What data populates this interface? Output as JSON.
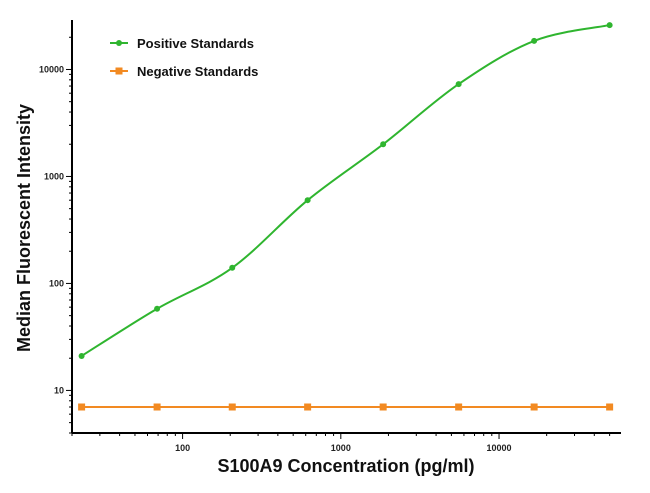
{
  "chart_data": {
    "type": "line",
    "title": "",
    "xlabel": "S100A9 Concentration (pg/ml)",
    "ylabel": "Median Fluorescent Intensity",
    "x_scale": "log",
    "y_scale": "log",
    "xlim": [
      20,
      59000
    ],
    "ylim": [
      4,
      29000
    ],
    "x_ticks": [
      100,
      1000,
      10000
    ],
    "x_tick_labels": [
      "100",
      "1000",
      "10000"
    ],
    "y_ticks": [
      10,
      100,
      1000,
      10000
    ],
    "y_tick_labels": [
      "10",
      "100",
      "1000",
      "10000"
    ],
    "grid": false,
    "legend_position": "top-left",
    "x": [
      23,
      69,
      206,
      617,
      1852,
      5556,
      16667,
      50000
    ],
    "series": [
      {
        "name": "Positive Standards",
        "color": "#2fb52f",
        "marker": "circle",
        "fit": "smooth-curve",
        "values": [
          21,
          58,
          140,
          600,
          2000,
          7300,
          18500,
          26000
        ]
      },
      {
        "name": "Negative Standards",
        "color": "#f28a22",
        "marker": "square",
        "fit": "line",
        "values": [
          7,
          7,
          7,
          7,
          7,
          7,
          7,
          7
        ]
      }
    ]
  }
}
